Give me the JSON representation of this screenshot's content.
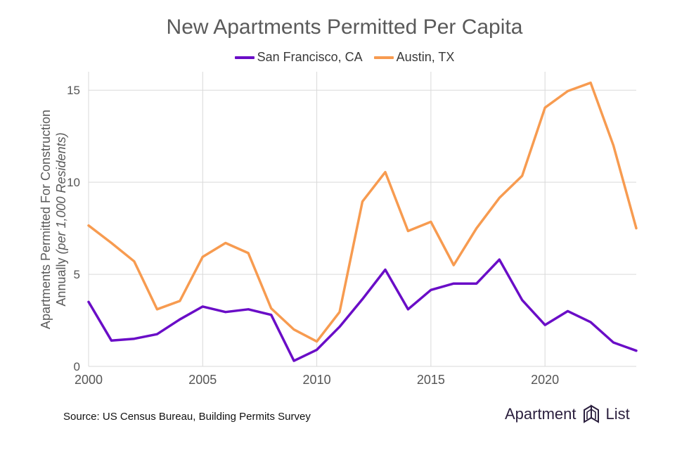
{
  "chart_data": {
    "type": "line",
    "title": "New Apartments Permitted Per Capita",
    "ylabel_main": "Apartments Permitted For Construction",
    "ylabel_sub_prefix": "Annually ",
    "ylabel_sub_italic": "(per 1,000 Residents)",
    "xlabel": "",
    "x": [
      2000,
      2001,
      2002,
      2003,
      2004,
      2005,
      2006,
      2007,
      2008,
      2009,
      2010,
      2011,
      2012,
      2013,
      2014,
      2015,
      2016,
      2017,
      2018,
      2019,
      2020,
      2021,
      2022,
      2023,
      2024
    ],
    "xlim": [
      2000,
      2024
    ],
    "ylim": [
      0,
      16
    ],
    "x_ticks": [
      "2000",
      "2005",
      "2010",
      "2015",
      "2020"
    ],
    "y_ticks": [
      "0",
      "5",
      "10",
      "15"
    ],
    "grid": true,
    "legend_position": "top-center",
    "series": [
      {
        "name": "San Francisco, CA",
        "color": "#6a0dc7",
        "values": [
          3.5,
          1.4,
          1.5,
          1.75,
          2.55,
          3.25,
          2.95,
          3.1,
          2.8,
          0.3,
          0.9,
          2.15,
          3.65,
          5.25,
          3.1,
          4.15,
          4.5,
          4.5,
          5.8,
          3.6,
          2.25,
          3.0,
          2.4,
          1.3,
          0.85
        ]
      },
      {
        "name": "Austin, TX",
        "color": "#f79b50",
        "values": [
          7.65,
          6.7,
          5.7,
          3.1,
          3.55,
          5.95,
          6.7,
          6.15,
          3.15,
          2.0,
          1.35,
          2.95,
          8.95,
          10.55,
          7.35,
          7.85,
          5.5,
          7.5,
          9.15,
          10.35,
          14.05,
          14.95,
          15.4,
          12.0,
          7.5
        ]
      }
    ]
  },
  "footer": {
    "source": "Source: US Census Bureau, Building Permits Survey",
    "brand_left": "Apartment",
    "brand_right": "List"
  }
}
